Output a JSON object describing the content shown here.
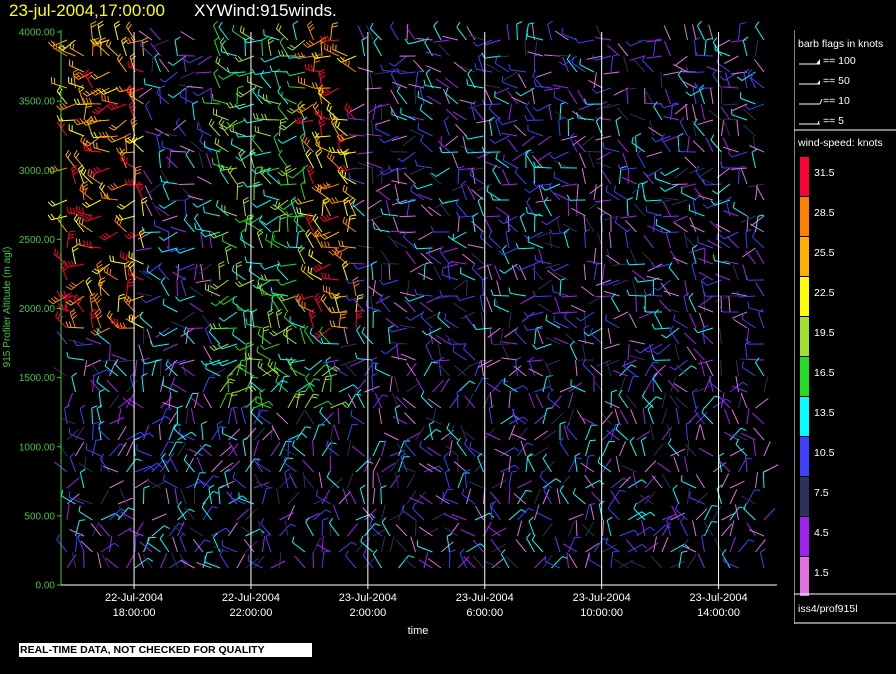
{
  "header": {
    "time_label": "23-jul-2004,17:00:00",
    "variable_label": "XYWind:915winds."
  },
  "chart_data": {
    "type": "scatter",
    "subtype": "wind-barb time-height plot",
    "ylabel": "915 Profiler Altitude (m agl)",
    "xlabel": "time",
    "ylim": [
      0,
      4000
    ],
    "y_ticks": [
      "0.00",
      "500.00",
      "1000.00",
      "1500.00",
      "2000.00",
      "2500.00",
      "3000.00",
      "3500.00",
      "4000.00"
    ],
    "y_tick_values": [
      0,
      500,
      1000,
      1500,
      2000,
      2500,
      3000,
      3500,
      4000
    ],
    "x_range_hours": [
      -2.5,
      22.0
    ],
    "x_ticks": [
      {
        "hour": 0,
        "date": "22-Jul-2004",
        "time": "18:00:00"
      },
      {
        "hour": 4,
        "date": "22-Jul-2004",
        "time": "22:00:00"
      },
      {
        "hour": 8,
        "date": "23-Jul-2004",
        "time": "2:00:00"
      },
      {
        "hour": 12,
        "date": "23-Jul-2004",
        "time": "6:00:00"
      },
      {
        "hour": 16,
        "date": "23-Jul-2004",
        "time": "10:00:00"
      },
      {
        "hour": 20,
        "date": "23-Jul-2004",
        "time": "14:00:00"
      }
    ],
    "grid": "vertical lines at time ticks",
    "colors": {
      "axis": "#3ec63e",
      "gridline": "#ffffff",
      "background": "#000000"
    }
  },
  "legend": {
    "barb_title": "barb flags in knots",
    "barbs": [
      "== 100",
      "== 50",
      "== 10",
      "== 5"
    ],
    "speed_title": "wind-speed: knots",
    "speed_labels": [
      "31.5",
      "28.5",
      "25.5",
      "22.5",
      "19.5",
      "16.5",
      "13.5",
      "10.5",
      "7.5",
      "4.5",
      "1.5"
    ],
    "speed_colors": [
      "#ff0033",
      "#ff7f00",
      "#ffb000",
      "#ffff00",
      "#a0e030",
      "#22dd22",
      "#00ffff",
      "#4040ff",
      "#303060",
      "#a020f0",
      "#e070e0"
    ],
    "instrument": "iss4/prof915l"
  },
  "footer": {
    "quality_note": "REAL-TIME DATA, NOT CHECKED FOR QUALITY"
  }
}
